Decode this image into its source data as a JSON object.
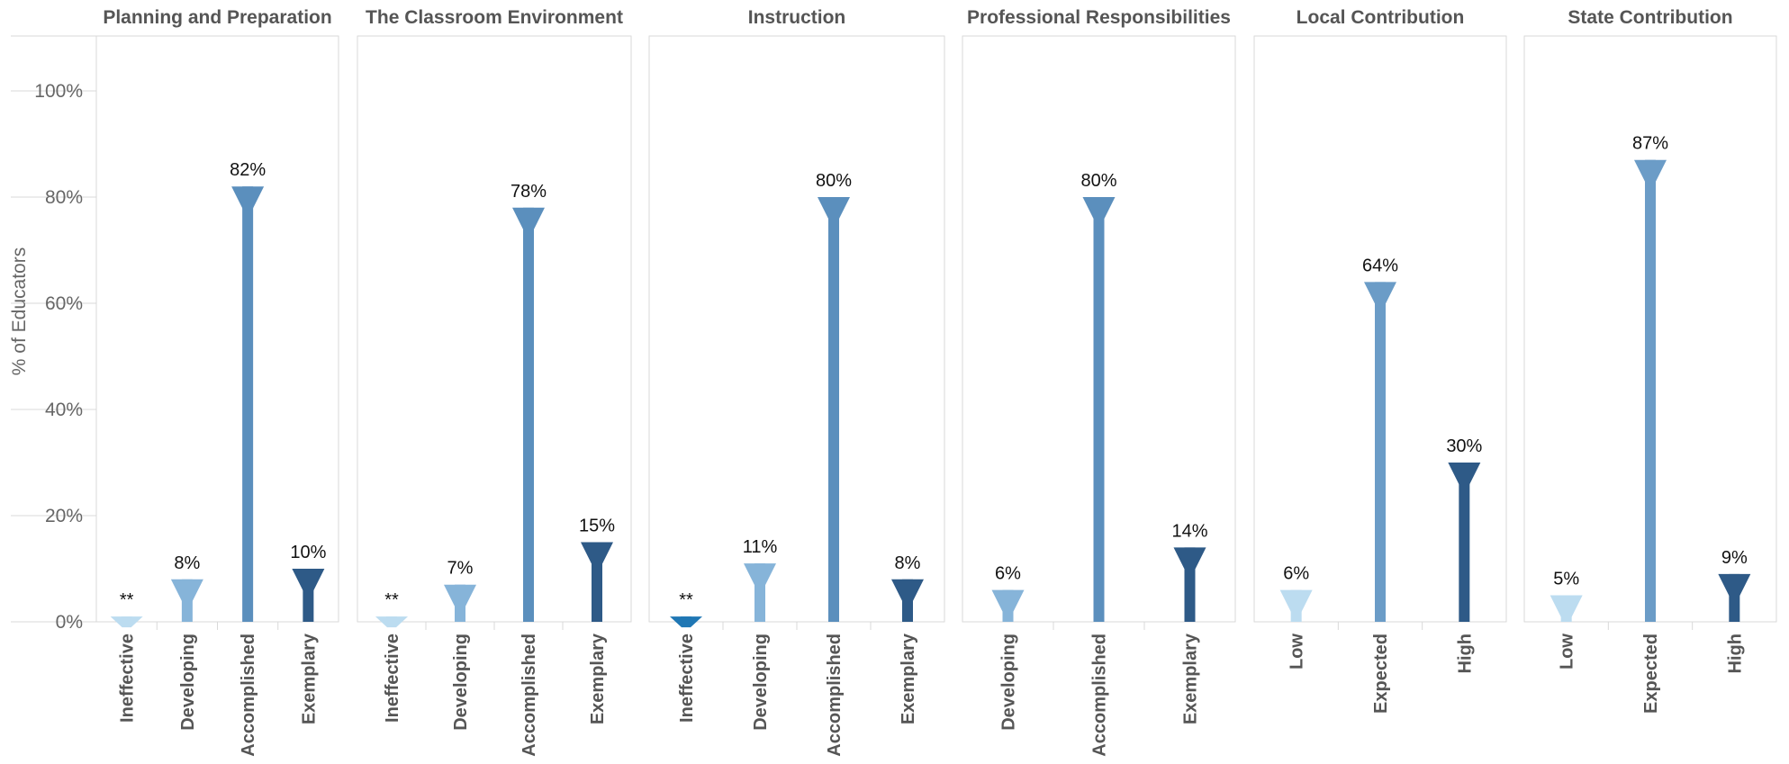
{
  "chart_data": {
    "type": "bar",
    "ylabel": "% of Educators",
    "ylim": [
      0,
      110
    ],
    "y_ticks": [
      "0%",
      "20%",
      "40%",
      "60%",
      "80%",
      "100%"
    ],
    "grid": false,
    "panels": [
      {
        "title": "Planning and Preparation",
        "categories": [
          "Ineffective",
          "Developing",
          "Accomplished",
          "Exemplary"
        ],
        "values": [
          1,
          8,
          82,
          10
        ],
        "labels": [
          "**",
          "8%",
          "82%",
          "10%"
        ],
        "colors": [
          "#bcdcf0",
          "#86b4d9",
          "#5b8fbd",
          "#2e5a87"
        ]
      },
      {
        "title": "The Classroom Environment",
        "categories": [
          "Ineffective",
          "Developing",
          "Accomplished",
          "Exemplary"
        ],
        "values": [
          1,
          7,
          78,
          15
        ],
        "labels": [
          "**",
          "7%",
          "78%",
          "15%"
        ],
        "colors": [
          "#bcdcf0",
          "#86b4d9",
          "#5b8fbd",
          "#2e5a87"
        ]
      },
      {
        "title": "Instruction",
        "categories": [
          "Ineffective",
          "Developing",
          "Accomplished",
          "Exemplary"
        ],
        "values": [
          1,
          11,
          80,
          8
        ],
        "labels": [
          "**",
          "11%",
          "80%",
          "8%"
        ],
        "colors": [
          "#1f77b4",
          "#86b4d9",
          "#5b8fbd",
          "#2e5a87"
        ]
      },
      {
        "title": "Professional Responsibilities",
        "categories": [
          "Developing",
          "Accomplished",
          "Exemplary"
        ],
        "values": [
          6,
          80,
          14
        ],
        "labels": [
          "6%",
          "80%",
          "14%"
        ],
        "colors": [
          "#86b4d9",
          "#5b8fbd",
          "#2e5a87"
        ]
      },
      {
        "title": "Local Contribution",
        "categories": [
          "Low",
          "Expected",
          "High"
        ],
        "values": [
          6,
          64,
          30
        ],
        "labels": [
          "6%",
          "64%",
          "30%"
        ],
        "colors": [
          "#bcdcf0",
          "#6b9cc7",
          "#2e5a87"
        ]
      },
      {
        "title": "State Contribution",
        "categories": [
          "Low",
          "Expected",
          "High"
        ],
        "values": [
          5,
          87,
          9
        ],
        "labels": [
          "5%",
          "87%",
          "9%"
        ],
        "colors": [
          "#bcdcf0",
          "#6b9cc7",
          "#2e5a87"
        ]
      }
    ]
  }
}
